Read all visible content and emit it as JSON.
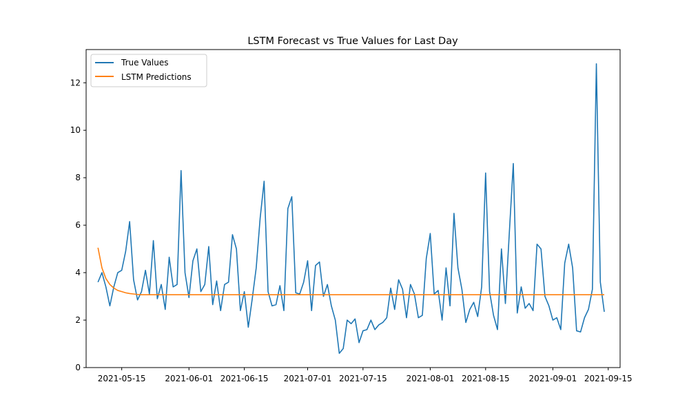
{
  "chart_data": {
    "type": "line",
    "title": "LSTM Forecast vs True Values for Last Day",
    "xlabel": "",
    "ylabel": "",
    "x_range": [
      "2021-05-06",
      "2021-09-18"
    ],
    "ylim": [
      0,
      13.4
    ],
    "x_ticks": [
      "2021-05-15",
      "2021-06-01",
      "2021-06-15",
      "2021-07-01",
      "2021-07-15",
      "2021-08-01",
      "2021-08-15",
      "2021-09-01",
      "2021-09-15"
    ],
    "y_ticks": [
      0,
      2,
      4,
      6,
      8,
      10,
      12
    ],
    "grid": false,
    "legend_position": "upper-left",
    "series": [
      {
        "name": "True Values",
        "color": "#1f77b4",
        "start_date": "2021-05-09",
        "values": [
          3.6,
          4.0,
          3.4,
          2.6,
          3.4,
          4.0,
          4.1,
          4.9,
          6.15,
          3.7,
          2.85,
          3.2,
          4.1,
          3.1,
          5.35,
          2.9,
          3.5,
          2.45,
          4.65,
          3.4,
          3.5,
          8.3,
          4.0,
          2.95,
          4.5,
          5.0,
          3.2,
          3.5,
          5.1,
          2.65,
          3.65,
          2.4,
          3.5,
          3.6,
          5.6,
          5.0,
          2.4,
          3.2,
          1.7,
          2.9,
          4.2,
          6.3,
          7.85,
          3.2,
          2.6,
          2.65,
          3.45,
          2.4,
          6.7,
          7.2,
          3.15,
          3.1,
          3.6,
          4.5,
          2.4,
          4.3,
          4.45,
          3.0,
          3.5,
          2.6,
          2.0,
          0.6,
          0.8,
          2.0,
          1.85,
          2.05,
          1.05,
          1.55,
          1.6,
          2.0,
          1.6,
          1.8,
          1.9,
          2.1,
          3.35,
          2.45,
          3.7,
          3.3,
          2.1,
          3.5,
          3.1,
          2.1,
          2.2,
          4.6,
          5.65,
          3.1,
          3.25,
          2.0,
          4.2,
          2.6,
          6.5,
          4.2,
          3.3,
          1.9,
          2.45,
          2.75,
          2.15,
          3.4,
          8.2,
          3.2,
          2.2,
          1.6,
          5.0,
          2.7,
          5.7,
          8.6,
          2.3,
          3.4,
          2.5,
          2.7,
          2.4,
          5.2,
          5.0,
          3.0,
          2.6,
          2.0,
          2.1,
          1.6,
          4.4,
          5.2,
          4.2,
          1.55,
          1.5,
          2.1,
          2.45,
          3.3,
          12.8,
          3.6,
          2.35
        ]
      },
      {
        "name": "LSTM Predictions",
        "color": "#ff7f0e",
        "start_date": "2021-05-09",
        "values": [
          5.05,
          4.2,
          3.75,
          3.5,
          3.35,
          3.25,
          3.2,
          3.15,
          3.12,
          3.1,
          3.08,
          3.07,
          3.07,
          3.07,
          3.07,
          3.07,
          3.07,
          3.07,
          3.07,
          3.07,
          3.07,
          3.07,
          3.07,
          3.07,
          3.07,
          3.07,
          3.07,
          3.07,
          3.07,
          3.07,
          3.07,
          3.07,
          3.07,
          3.07,
          3.07,
          3.07,
          3.07,
          3.07,
          3.07,
          3.07,
          3.07,
          3.07,
          3.07,
          3.07,
          3.07,
          3.07,
          3.07,
          3.07,
          3.07,
          3.07,
          3.07,
          3.07,
          3.07,
          3.07,
          3.07,
          3.07,
          3.07,
          3.07,
          3.07,
          3.07,
          3.07,
          3.07,
          3.07,
          3.07,
          3.07,
          3.07,
          3.07,
          3.07,
          3.07,
          3.07,
          3.07,
          3.07,
          3.07,
          3.07,
          3.07,
          3.07,
          3.07,
          3.07,
          3.07,
          3.07,
          3.07,
          3.07,
          3.07,
          3.07,
          3.07,
          3.07,
          3.07,
          3.07,
          3.07,
          3.07,
          3.07,
          3.07,
          3.07,
          3.07,
          3.07,
          3.07,
          3.07,
          3.07,
          3.07,
          3.07,
          3.07,
          3.07,
          3.07,
          3.07,
          3.07,
          3.07,
          3.07,
          3.07,
          3.07,
          3.07,
          3.07,
          3.07,
          3.07,
          3.07,
          3.07,
          3.07,
          3.07,
          3.07,
          3.07,
          3.07,
          3.07,
          3.07,
          3.07,
          3.07,
          3.07,
          3.07,
          3.07,
          3.07,
          3.07
        ]
      }
    ]
  }
}
